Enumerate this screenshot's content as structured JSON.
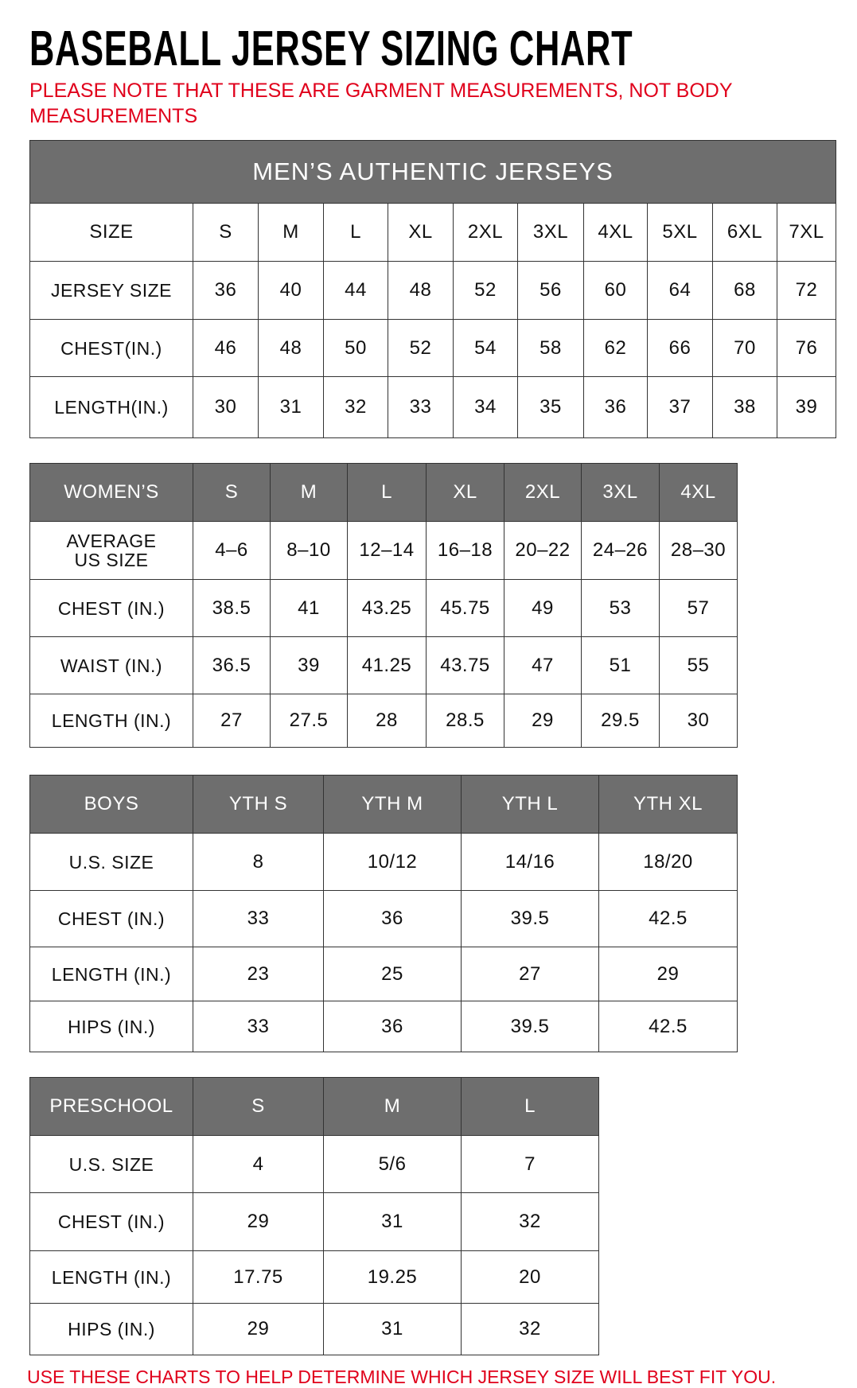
{
  "title": "BASEBALL JERSEY SIZING CHART",
  "note": "PLEASE NOTE THAT THESE ARE GARMENT MEASUREMENTS, NOT BODY MEASUREMENTS",
  "footer": "USE THESE CHARTS TO HELP DETERMINE WHICH JERSEY SIZE WILL BEST FIT YOU.",
  "colors": {
    "header_bg": "#6e6e6e",
    "header_text": "#ffffff",
    "note_red": "#e0001b"
  },
  "tables": [
    {
      "id": "mens",
      "caption": "MEN’S AUTHENTIC JERSEYS",
      "header_gray": false,
      "header": [
        "SIZE",
        "S",
        "M",
        "L",
        "XL",
        "2XL",
        "3XL",
        "4XL",
        "5XL",
        "6XL",
        "7XL"
      ],
      "rows": [
        [
          "JERSEY SIZE",
          "36",
          "40",
          "44",
          "48",
          "52",
          "56",
          "60",
          "64",
          "68",
          "72"
        ],
        [
          "CHEST(IN.)",
          "46",
          "48",
          "50",
          "52",
          "54",
          "58",
          "62",
          "66",
          "70",
          "76"
        ],
        [
          "LENGTH(IN.)",
          "30",
          "31",
          "32",
          "33",
          "34",
          "35",
          "36",
          "37",
          "38",
          "39"
        ]
      ]
    },
    {
      "id": "womens",
      "header_gray": true,
      "header": [
        "WOMEN’S",
        "S",
        "M",
        "L",
        "XL",
        "2XL",
        "3XL",
        "4XL"
      ],
      "rows": [
        [
          "AVERAGE\nUS SIZE",
          "4–6",
          "8–10",
          "12–14",
          "16–18",
          "20–22",
          "24–26",
          "28–30"
        ],
        [
          "CHEST (IN.)",
          "38.5",
          "41",
          "43.25",
          "45.75",
          "49",
          "53",
          "57"
        ],
        [
          "WAIST (IN.)",
          "36.5",
          "39",
          "41.25",
          "43.75",
          "47",
          "51",
          "55"
        ],
        [
          "LENGTH (IN.)",
          "27",
          "27.5",
          "28",
          "28.5",
          "29",
          "29.5",
          "30"
        ]
      ]
    },
    {
      "id": "boys",
      "header_gray": true,
      "header": [
        "BOYS",
        "YTH S",
        "YTH M",
        "YTH L",
        "YTH XL"
      ],
      "rows": [
        [
          "U.S. SIZE",
          "8",
          "10/12",
          "14/16",
          "18/20"
        ],
        [
          "CHEST (IN.)",
          "33",
          "36",
          "39.5",
          "42.5"
        ],
        [
          "LENGTH (IN.)",
          "23",
          "25",
          "27",
          "29"
        ],
        [
          "HIPS (IN.)",
          "33",
          "36",
          "39.5",
          "42.5"
        ]
      ]
    },
    {
      "id": "preschool",
      "header_gray": true,
      "header": [
        "PRESCHOOL",
        "S",
        "M",
        "L"
      ],
      "rows": [
        [
          "U.S. SIZE",
          "4",
          "5/6",
          "7"
        ],
        [
          "CHEST (IN.)",
          "29",
          "31",
          "32"
        ],
        [
          "LENGTH (IN.)",
          "17.75",
          "19.25",
          "20"
        ],
        [
          "HIPS (IN.)",
          "29",
          "31",
          "32"
        ]
      ]
    }
  ]
}
